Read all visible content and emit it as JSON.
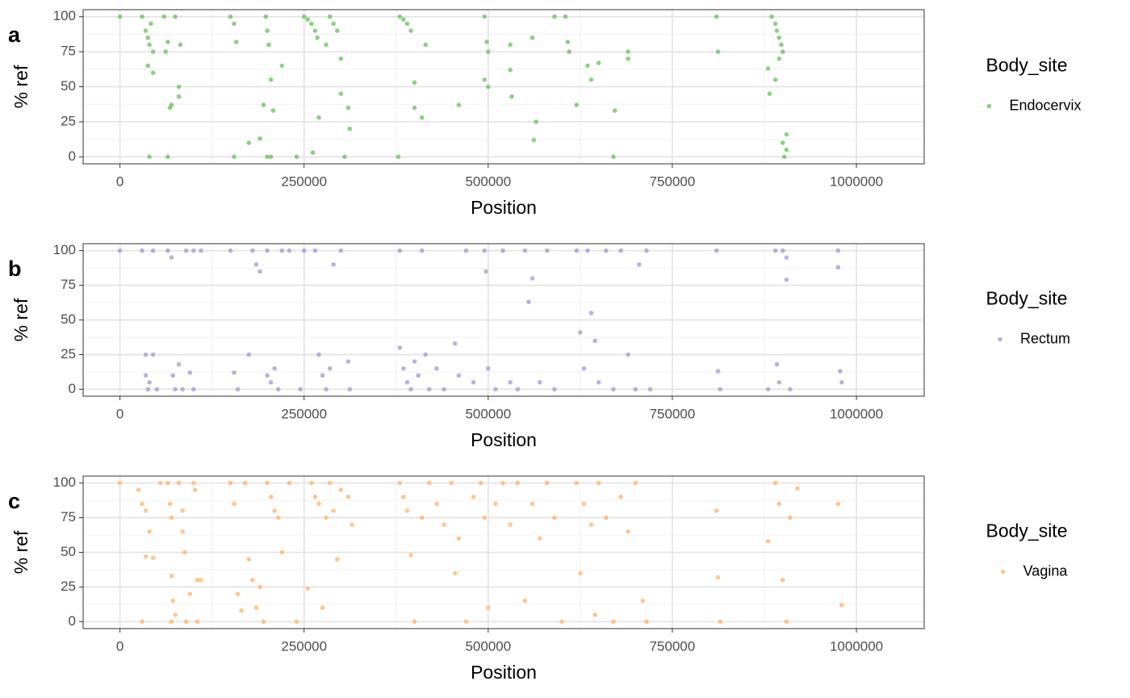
{
  "chart_data": [
    {
      "type": "scatter",
      "panel_label": "a",
      "ylabel": "% ref",
      "xlabel": "Position",
      "legend_title": "Body_site",
      "xlim": [
        -50000,
        1092000
      ],
      "ylim": [
        -5,
        105
      ],
      "xticks": [
        0,
        250000,
        500000,
        750000,
        1000000
      ],
      "yticks": [
        0,
        25,
        50,
        75,
        100
      ],
      "grid": true,
      "minor_grid": true,
      "series": [
        {
          "name": "Endocervix",
          "color": "#6abf5e",
          "x": [
            0,
            30000,
            35000,
            38000,
            40000,
            42000,
            45000,
            38000,
            45000,
            40000,
            60000,
            62000,
            65000,
            68000,
            70000,
            65000,
            82000,
            80000,
            80000,
            75000,
            150000,
            155000,
            158000,
            155000,
            175000,
            190000,
            195000,
            198000,
            200000,
            202000,
            205000,
            208000,
            200000,
            205000,
            220000,
            240000,
            250000,
            255000,
            260000,
            265000,
            268000,
            262000,
            270000,
            280000,
            285000,
            290000,
            295000,
            300000,
            300000,
            305000,
            310000,
            312000,
            380000,
            385000,
            390000,
            395000,
            400000,
            400000,
            378000,
            410000,
            415000,
            460000,
            495000,
            498000,
            500000,
            495000,
            500000,
            530000,
            530000,
            532000,
            560000,
            565000,
            562000,
            590000,
            605000,
            608000,
            610000,
            620000,
            635000,
            640000,
            650000,
            670000,
            672000,
            690000,
            690000,
            810000,
            812000,
            880000,
            882000,
            885000,
            890000,
            892000,
            895000,
            898000,
            900000,
            900000,
            902000,
            905000,
            905000,
            895000,
            890000
          ],
          "y": [
            100,
            100,
            90,
            85,
            80,
            95,
            75,
            65,
            60,
            0,
            100,
            75,
            82,
            35,
            37,
            0,
            80,
            50,
            43,
            100,
            100,
            95,
            82,
            0,
            10,
            13,
            37,
            100,
            90,
            80,
            55,
            33,
            0,
            0,
            65,
            0,
            100,
            98,
            95,
            90,
            85,
            3,
            28,
            80,
            100,
            95,
            90,
            70,
            45,
            0,
            35,
            20,
            100,
            98,
            95,
            90,
            53,
            35,
            0,
            28,
            80,
            37,
            100,
            82,
            75,
            55,
            50,
            80,
            62,
            43,
            85,
            25,
            12,
            100,
            100,
            82,
            75,
            37,
            65,
            55,
            67,
            0,
            33,
            75,
            70,
            100,
            75,
            63,
            45,
            100,
            95,
            90,
            85,
            80,
            75,
            10,
            0,
            16,
            5,
            70,
            55
          ]
        }
      ]
    },
    {
      "type": "scatter",
      "panel_label": "b",
      "ylabel": "% ref",
      "xlabel": "Position",
      "legend_title": "Body_site",
      "xlim": [
        -50000,
        1092000
      ],
      "ylim": [
        -5,
        105
      ],
      "xticks": [
        0,
        250000,
        500000,
        750000,
        1000000
      ],
      "yticks": [
        0,
        25,
        50,
        75,
        100
      ],
      "grid": true,
      "minor_grid": true,
      "series": [
        {
          "name": "Rectum",
          "color": "#a996cc",
          "x": [
            0,
            30000,
            35000,
            35000,
            38000,
            40000,
            45000,
            45000,
            50000,
            65000,
            70000,
            72000,
            75000,
            80000,
            85000,
            90000,
            95000,
            100000,
            100000,
            110000,
            150000,
            155000,
            160000,
            175000,
            180000,
            185000,
            190000,
            200000,
            200000,
            205000,
            210000,
            215000,
            220000,
            230000,
            245000,
            250000,
            265000,
            270000,
            275000,
            280000,
            285000,
            290000,
            300000,
            310000,
            312000,
            380000,
            380000,
            385000,
            390000,
            395000,
            400000,
            405000,
            410000,
            415000,
            420000,
            430000,
            440000,
            455000,
            460000,
            470000,
            480000,
            495000,
            497000,
            500000,
            510000,
            520000,
            530000,
            540000,
            550000,
            555000,
            560000,
            570000,
            580000,
            590000,
            620000,
            625000,
            630000,
            635000,
            640000,
            645000,
            650000,
            660000,
            670000,
            680000,
            690000,
            700000,
            705000,
            715000,
            720000,
            810000,
            812000,
            815000,
            880000,
            890000,
            892000,
            895000,
            900000,
            905000,
            905000,
            910000,
            975000,
            975000,
            978000,
            980000
          ],
          "y": [
            100,
            100,
            25,
            10,
            0,
            5,
            100,
            25,
            0,
            100,
            95,
            10,
            0,
            18,
            0,
            100,
            12,
            0,
            100,
            100,
            100,
            12,
            0,
            25,
            100,
            90,
            85,
            100,
            10,
            5,
            15,
            0,
            100,
            100,
            0,
            100,
            100,
            25,
            10,
            0,
            15,
            90,
            100,
            20,
            0,
            100,
            30,
            15,
            5,
            0,
            20,
            10,
            100,
            25,
            0,
            15,
            0,
            33,
            10,
            100,
            5,
            100,
            85,
            15,
            0,
            100,
            5,
            0,
            100,
            63,
            80,
            5,
            100,
            0,
            100,
            41,
            15,
            100,
            55,
            35,
            5,
            100,
            0,
            100,
            25,
            0,
            90,
            100,
            0,
            100,
            13,
            0,
            0,
            100,
            18,
            5,
            100,
            95,
            79,
            0,
            100,
            88,
            13,
            5
          ]
        }
      ]
    },
    {
      "type": "scatter",
      "panel_label": "c",
      "ylabel": "% ref",
      "xlabel": "Position",
      "legend_title": "Body_site",
      "xlim": [
        -50000,
        1092000
      ],
      "ylim": [
        -5,
        105
      ],
      "xticks": [
        0,
        250000,
        500000,
        750000,
        1000000
      ],
      "yticks": [
        0,
        25,
        50,
        75,
        100
      ],
      "grid": true,
      "minor_grid": true,
      "series": [
        {
          "name": "Vagina",
          "color": "#fdb46e",
          "x": [
            0,
            25000,
            30000,
            35000,
            35000,
            40000,
            45000,
            30000,
            55000,
            65000,
            68000,
            70000,
            70000,
            72000,
            70000,
            75000,
            80000,
            85000,
            85000,
            88000,
            90000,
            95000,
            100000,
            102000,
            105000,
            105000,
            110000,
            150000,
            155000,
            160000,
            165000,
            170000,
            175000,
            180000,
            185000,
            190000,
            195000,
            200000,
            205000,
            210000,
            215000,
            220000,
            230000,
            240000,
            255000,
            260000,
            265000,
            270000,
            275000,
            280000,
            285000,
            290000,
            295000,
            300000,
            310000,
            315000,
            380000,
            385000,
            390000,
            395000,
            400000,
            410000,
            420000,
            430000,
            440000,
            450000,
            455000,
            460000,
            470000,
            480000,
            490000,
            495000,
            500000,
            510000,
            520000,
            530000,
            540000,
            550000,
            560000,
            570000,
            580000,
            590000,
            600000,
            620000,
            625000,
            630000,
            640000,
            645000,
            650000,
            660000,
            670000,
            680000,
            690000,
            700000,
            710000,
            715000,
            810000,
            812000,
            815000,
            880000,
            890000,
            895000,
            900000,
            905000,
            910000,
            920000,
            975000,
            980000
          ],
          "y": [
            100,
            95,
            85,
            80,
            47,
            65,
            46,
            0,
            100,
            100,
            85,
            75,
            33,
            15,
            0,
            5,
            100,
            80,
            65,
            50,
            0,
            20,
            100,
            95,
            30,
            0,
            30,
            100,
            85,
            20,
            8,
            100,
            45,
            30,
            10,
            25,
            0,
            100,
            90,
            80,
            75,
            50,
            100,
            0,
            24,
            100,
            90,
            85,
            10,
            75,
            100,
            80,
            45,
            95,
            90,
            70,
            100,
            90,
            80,
            48,
            0,
            75,
            100,
            85,
            70,
            100,
            35,
            60,
            0,
            90,
            100,
            75,
            10,
            85,
            100,
            70,
            100,
            15,
            85,
            60,
            100,
            75,
            0,
            100,
            35,
            85,
            70,
            5,
            100,
            75,
            0,
            90,
            65,
            100,
            15,
            0,
            80,
            32,
            0,
            58,
            100,
            85,
            30,
            0,
            75,
            96,
            85,
            12
          ]
        }
      ]
    }
  ]
}
